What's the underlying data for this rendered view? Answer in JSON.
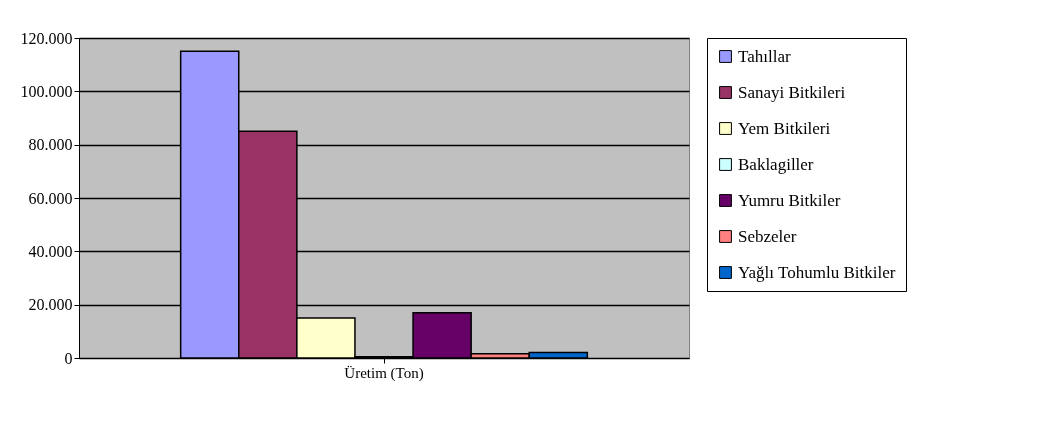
{
  "chart_data": {
    "type": "bar",
    "categories": [
      "Üretim (Ton)"
    ],
    "series": [
      {
        "name": "Tahıllar",
        "color": "#9999ff",
        "values": [
          115000
        ]
      },
      {
        "name": "Sanayi Bitkileri",
        "color": "#993366",
        "values": [
          85000
        ]
      },
      {
        "name": "Yem Bitkileri",
        "color": "#ffffcc",
        "values": [
          15000
        ]
      },
      {
        "name": "Baklagiller",
        "color": "#ccffff",
        "values": [
          500
        ]
      },
      {
        "name": "Yumru Bitkiler",
        "color": "#660066",
        "values": [
          17000
        ]
      },
      {
        "name": "Sebzeler",
        "color": "#ff8080",
        "values": [
          1600
        ]
      },
      {
        "name": "Yağlı Tohumlu Bitkiler",
        "color": "#0066cc",
        "values": [
          2100
        ]
      }
    ],
    "ylim": [
      0,
      120000
    ],
    "yticks": [
      {
        "value": 0,
        "label": "0"
      },
      {
        "value": 20000,
        "label": "20.000"
      },
      {
        "value": 40000,
        "label": "40.000"
      },
      {
        "value": 60000,
        "label": "60.000"
      },
      {
        "value": 80000,
        "label": "80.000"
      },
      {
        "value": 100000,
        "label": "100.000"
      },
      {
        "value": 120000,
        "label": "120.000"
      }
    ],
    "grid": "y",
    "legend": "right"
  }
}
